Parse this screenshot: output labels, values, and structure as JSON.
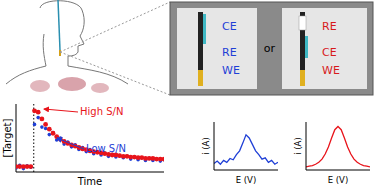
{
  "diagram": {
    "zoom": {
      "left": {
        "labels": [
          "CE",
          "RE",
          "WE"
        ],
        "color": "#1f3fd6"
      },
      "separator": "or",
      "right": {
        "labels": [
          "RE",
          "CE",
          "WE"
        ],
        "color": "#d7191c"
      }
    }
  },
  "chart_data": [
    {
      "type": "scatter",
      "x_label": "Time",
      "y_label": "[Target]",
      "xlim": [
        0,
        100
      ],
      "ylim": [
        0,
        100
      ],
      "tick_labels": false,
      "vline": 12,
      "x": [
        0,
        2.5,
        5,
        7.5,
        10,
        12.5,
        15,
        17.5,
        20,
        22.5,
        25,
        27.5,
        30,
        32.5,
        35,
        37.5,
        40,
        42.5,
        45,
        47.5,
        50,
        52.5,
        55,
        57.5,
        60,
        62.5,
        65,
        67.5,
        70,
        72.5,
        75,
        77.5,
        80,
        82.5,
        85,
        87.5,
        90,
        92.5,
        95,
        97.5,
        100
      ],
      "series": [
        {
          "name": "Low S/N",
          "color": "#1f3fd6",
          "values": [
            6,
            10,
            5,
            9,
            7,
            70,
            80,
            66,
            64,
            55,
            58,
            47,
            50,
            41,
            44,
            37,
            40,
            33,
            36,
            30,
            33,
            27,
            30,
            25,
            28,
            23,
            26,
            22,
            24,
            21,
            23,
            19,
            22,
            18,
            21,
            17,
            20,
            17,
            19,
            16,
            18
          ]
        },
        {
          "name": "High S/N",
          "color": "#e8141b",
          "values": [
            8,
            8,
            8,
            8,
            8,
            90,
            88,
            78,
            70,
            63,
            57,
            52,
            48,
            45,
            42,
            40,
            38,
            36,
            34,
            33,
            31,
            30,
            29,
            28,
            27,
            26,
            25,
            25,
            24,
            23,
            23,
            22,
            22,
            21,
            21,
            20,
            20,
            20,
            19,
            19,
            19
          ]
        }
      ]
    },
    {
      "type": "line",
      "x_label": "E (V)",
      "y_label": "i (A)",
      "xlim": [
        0,
        20
      ],
      "ylim": [
        0,
        75
      ],
      "tick_labels": false,
      "x": [
        0,
        1,
        2,
        3,
        4,
        5,
        6,
        7,
        8,
        9,
        10,
        11,
        12,
        13,
        14,
        15,
        16,
        17,
        18,
        19,
        20
      ],
      "series": [
        {
          "color": "#1f3fd6",
          "values": [
            10,
            14,
            9,
            15,
            12,
            18,
            16,
            24,
            30,
            42,
            55,
            50,
            40,
            30,
            24,
            17,
            19,
            12,
            15,
            9,
            12
          ]
        }
      ]
    },
    {
      "type": "line",
      "x_label": "E (V)",
      "y_label": "i (A)",
      "xlim": [
        0,
        20
      ],
      "ylim": [
        0,
        75
      ],
      "tick_labels": false,
      "x": [
        0,
        1,
        2,
        3,
        4,
        5,
        6,
        7,
        8,
        9,
        10,
        11,
        12,
        13,
        14,
        15,
        16,
        17,
        18,
        19,
        20
      ],
      "series": [
        {
          "color": "#e8141b",
          "values": [
            5,
            6,
            7,
            9,
            12,
            17,
            25,
            36,
            50,
            63,
            68,
            63,
            50,
            36,
            25,
            17,
            12,
            9,
            7,
            6,
            5
          ]
        }
      ]
    }
  ]
}
